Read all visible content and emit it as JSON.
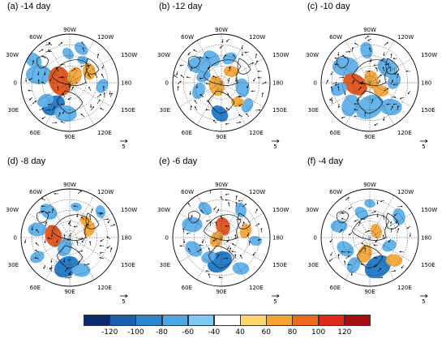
{
  "panels": [
    {
      "title": "(a) -14 day"
    },
    {
      "title": "(b) -12 day"
    },
    {
      "title": "(c) -10 day"
    },
    {
      "title": "(d) -8 day"
    },
    {
      "title": "(e) -6 day"
    },
    {
      "title": "(f) -4 day"
    }
  ],
  "map_labels": {
    "top": "90W",
    "top_left": "60W",
    "top_right": "120W",
    "upper_left": "30W",
    "upper_right": "150W",
    "left": "0",
    "right": "180",
    "lower_left": "30E",
    "lower_right": "150E",
    "bottom_left": "60E",
    "bottom": "90E",
    "bottom_right": "120E"
  },
  "reference_vector_value": "5",
  "colorbar": {
    "labels": [
      "-120",
      "-100",
      "-80",
      "-60",
      "-40",
      "40",
      "60",
      "80",
      "100",
      "120"
    ],
    "colors": [
      "#0b2a6e",
      "#1b5fb0",
      "#2b86d0",
      "#4fa6e6",
      "#7ecbf2",
      "#ffffff",
      "#ffd66b",
      "#f5a32e",
      "#ec6a1c",
      "#e02a16",
      "#a50e10"
    ]
  },
  "anomaly_colors": {
    "neg_strong": "#1f78c8",
    "neg": "#5fb0ea",
    "pos": "#f4a638",
    "pos_strong": "#e2531c"
  }
}
